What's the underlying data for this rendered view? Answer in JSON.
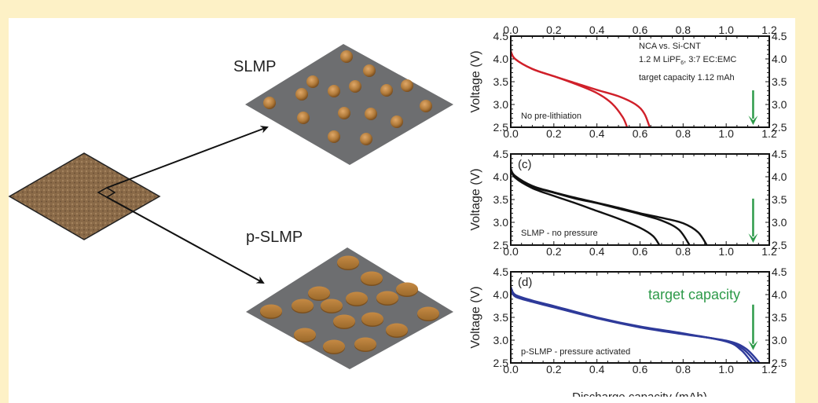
{
  "colors": {
    "background": "#fdf1c6",
    "substrate": "#8a6a48",
    "sheet": "#6d6e70",
    "particle": "#b07a3a",
    "red": "#d0202a",
    "black": "#111111",
    "blue": "#2e3a9a",
    "green": "#2e9a4a"
  },
  "diagram": {
    "slmp_label": "SLMP",
    "pslmp_label": "p-SLMP"
  },
  "chart_data": [
    {
      "type": "line",
      "id": "top",
      "xlabel": "",
      "ylabel": "Voltage (V)",
      "xlim": [
        0,
        1.2
      ],
      "ylim": [
        2.5,
        4.5
      ],
      "xticks": [
        "0.0",
        "0.2",
        "0.4",
        "0.6",
        "0.8",
        "1.0",
        "1.2"
      ],
      "yticks": [
        "2.5",
        "3.0",
        "3.5",
        "4.0",
        "4.5"
      ],
      "annotations": [
        "No pre-lithiation",
        "NCA vs. Si-CNT",
        "target capacity 1.12 mAh"
      ],
      "electrolyte": {
        "pre": "1.2 M LiPF",
        "sub": "6",
        "post": ", 3:7 EC:EMC"
      },
      "target_arrow": {
        "x": 1.125,
        "from": 3.31,
        "to": 2.55
      },
      "line_color": "#d0202a",
      "series": [
        {
          "points": [
            [
              0,
              4.17
            ],
            [
              0.02,
              4.0
            ],
            [
              0.1,
              3.78
            ],
            [
              0.2,
              3.62
            ],
            [
              0.3,
              3.45
            ],
            [
              0.4,
              3.25
            ],
            [
              0.47,
              3.02
            ],
            [
              0.52,
              2.72
            ],
            [
              0.54,
              2.5
            ]
          ]
        },
        {
          "points": [
            [
              0,
              4.17
            ],
            [
              0.02,
              4.0
            ],
            [
              0.1,
              3.78
            ],
            [
              0.2,
              3.62
            ],
            [
              0.3,
              3.47
            ],
            [
              0.4,
              3.32
            ],
            [
              0.5,
              3.18
            ],
            [
              0.58,
              3.0
            ],
            [
              0.62,
              2.8
            ],
            [
              0.645,
              2.5
            ]
          ]
        }
      ]
    },
    {
      "type": "line",
      "id": "middle",
      "xlabel": "",
      "ylabel": "Voltage (V)",
      "xlim": [
        0,
        1.2
      ],
      "ylim": [
        2.5,
        4.5
      ],
      "xticks": [
        "0.0",
        "0.2",
        "0.4",
        "0.6",
        "0.8",
        "1.0",
        "1.2"
      ],
      "yticks": [
        "2.5",
        "3.0",
        "3.5",
        "4.0",
        "4.5"
      ],
      "panel_label": "(c)",
      "annotations": [
        "SLMP - no pressure"
      ],
      "target_arrow": {
        "x": 1.125,
        "from": 3.52,
        "to": 2.55
      },
      "line_color": "#111111",
      "series": [
        {
          "points": [
            [
              0,
              4.17
            ],
            [
              0.02,
              3.98
            ],
            [
              0.1,
              3.75
            ],
            [
              0.2,
              3.58
            ],
            [
              0.3,
              3.42
            ],
            [
              0.4,
              3.25
            ],
            [
              0.5,
              3.08
            ],
            [
              0.6,
              2.88
            ],
            [
              0.66,
              2.7
            ],
            [
              0.69,
              2.5
            ]
          ]
        },
        {
          "points": [
            [
              0,
              4.17
            ],
            [
              0.02,
              4.0
            ],
            [
              0.1,
              3.78
            ],
            [
              0.2,
              3.65
            ],
            [
              0.3,
              3.52
            ],
            [
              0.4,
              3.42
            ],
            [
              0.5,
              3.3
            ],
            [
              0.6,
              3.18
            ],
            [
              0.7,
              3.04
            ],
            [
              0.78,
              2.84
            ],
            [
              0.83,
              2.5
            ]
          ]
        },
        {
          "points": [
            [
              0,
              4.17
            ],
            [
              0.02,
              4.02
            ],
            [
              0.1,
              3.8
            ],
            [
              0.2,
              3.66
            ],
            [
              0.3,
              3.54
            ],
            [
              0.4,
              3.43
            ],
            [
              0.5,
              3.32
            ],
            [
              0.6,
              3.2
            ],
            [
              0.7,
              3.1
            ],
            [
              0.8,
              2.98
            ],
            [
              0.87,
              2.78
            ],
            [
              0.91,
              2.5
            ]
          ]
        }
      ]
    },
    {
      "type": "line",
      "id": "bottom",
      "xlabel": "Discharge capacity (mAh)",
      "ylabel": "Voltage (V)",
      "xlim": [
        0,
        1.2
      ],
      "ylim": [
        2.5,
        4.5
      ],
      "xticks": [
        "0.0",
        "0.2",
        "0.4",
        "0.6",
        "0.8",
        "1.0",
        "1.2"
      ],
      "yticks": [
        "2.5",
        "3.0",
        "3.5",
        "4.0",
        "4.5"
      ],
      "panel_label": "(d)",
      "annotations": [
        "p-SLMP - pressure activated",
        "target capacity"
      ],
      "target_arrow": {
        "x": 1.125,
        "from": 3.78,
        "to": 2.78
      },
      "line_color": "#2e3a9a",
      "series": [
        {
          "points": [
            [
              0,
              4.17
            ],
            [
              0.02,
              4.0
            ],
            [
              0.1,
              3.87
            ],
            [
              0.2,
              3.75
            ],
            [
              0.4,
              3.5
            ],
            [
              0.6,
              3.3
            ],
            [
              0.8,
              3.15
            ],
            [
              1.0,
              2.97
            ],
            [
              1.07,
              2.78
            ],
            [
              1.12,
              2.5
            ]
          ]
        },
        {
          "points": [
            [
              0,
              4.15
            ],
            [
              0.02,
              3.98
            ],
            [
              0.1,
              3.85
            ],
            [
              0.2,
              3.73
            ],
            [
              0.4,
              3.49
            ],
            [
              0.6,
              3.29
            ],
            [
              0.8,
              3.14
            ],
            [
              1.0,
              2.98
            ],
            [
              1.08,
              2.8
            ],
            [
              1.14,
              2.5
            ]
          ]
        },
        {
          "points": [
            [
              0,
              4.13
            ],
            [
              0.02,
              3.96
            ],
            [
              0.1,
              3.84
            ],
            [
              0.2,
              3.72
            ],
            [
              0.4,
              3.48
            ],
            [
              0.6,
              3.28
            ],
            [
              0.8,
              3.13
            ],
            [
              1.0,
              2.99
            ],
            [
              1.09,
              2.82
            ],
            [
              1.155,
              2.5
            ]
          ]
        }
      ]
    }
  ]
}
